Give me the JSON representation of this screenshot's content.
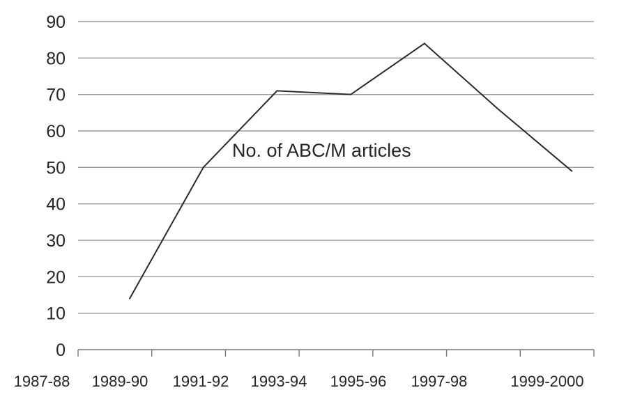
{
  "chart_data": {
    "type": "line",
    "title": "",
    "xlabel": "",
    "ylabel": "",
    "ylim": [
      0,
      90
    ],
    "y_ticks": [
      0,
      10,
      20,
      30,
      40,
      50,
      60,
      70,
      80,
      90
    ],
    "x_tick_labels": [
      "1987-88",
      "1989-90",
      "1991-92",
      "1993-94",
      "1995-96",
      "1997-98",
      "1999-2000"
    ],
    "grid": "horizontal",
    "annotation": "No. of ABC/M articles",
    "series": [
      {
        "x": [
          1988.5,
          1990.5,
          1992.5,
          1994.5,
          1996.5,
          1998.5,
          2000.5
        ],
        "values": [
          14,
          50,
          71,
          70,
          84,
          66,
          49
        ]
      }
    ]
  }
}
